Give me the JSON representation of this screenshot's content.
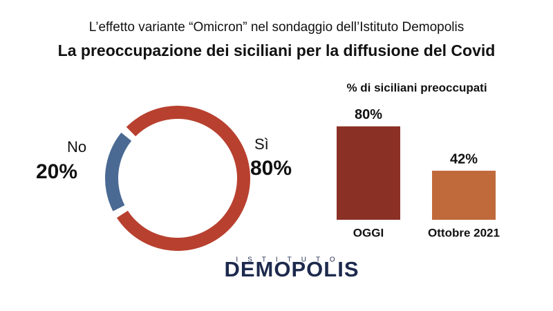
{
  "header": {
    "subtitle": "L’effetto variante “Omicron” nel sondaggio dell’Istituto Demopolis",
    "title": "La preoccupazione dei siciliani per la diffusione del Covid"
  },
  "chart_data": [
    {
      "type": "donut",
      "categories": [
        "Sì",
        "No"
      ],
      "values": [
        80,
        20
      ],
      "value_labels": [
        "80%",
        "20%"
      ],
      "colors": [
        "#b8402f",
        "#4a6a94"
      ]
    },
    {
      "type": "bar",
      "title": "% di siciliani preoccupati",
      "categories": [
        "OGGI",
        "Ottobre 2021"
      ],
      "values": [
        80,
        42
      ],
      "value_labels": [
        "80%",
        "42%"
      ],
      "colors": [
        "#8b3024",
        "#c0693a"
      ]
    }
  ],
  "logo": {
    "top": "ISTITUTO",
    "name": "DEMOPOLIS"
  }
}
